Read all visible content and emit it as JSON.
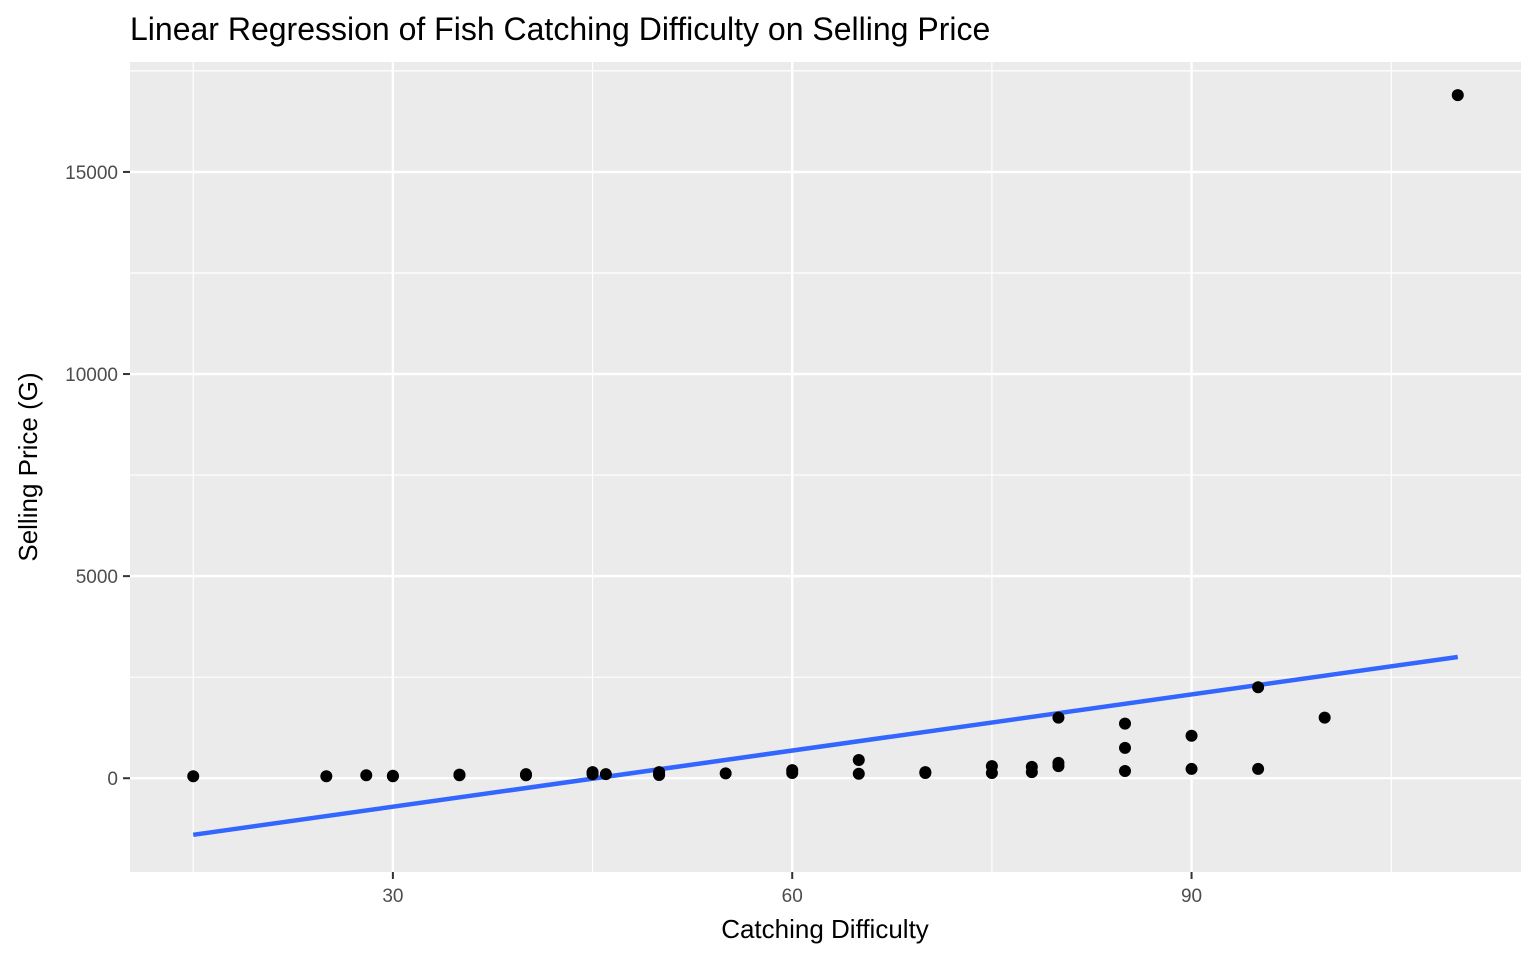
{
  "chart_data": {
    "type": "scatter",
    "title": "Linear Regression of Fish Catching Difficulty on Selling Price",
    "xlabel": "Catching Difficulty",
    "ylabel": "Selling Price (G)",
    "xlim": [
      10.25,
      114.75
    ],
    "ylim": [
      -2320,
      17720
    ],
    "x_ticks": [
      30,
      60,
      90
    ],
    "y_ticks": [
      0,
      5000,
      10000,
      15000
    ],
    "x_tick_labels": [
      "30",
      "60",
      "90"
    ],
    "y_tick_labels": [
      "0",
      "5000",
      "10000",
      "15000"
    ],
    "grid": true,
    "legend": "none",
    "colors": {
      "panel": "#ebebeb",
      "grid": "#ffffff",
      "points": "#000000",
      "fit_line": "#3366ff"
    },
    "points": {
      "x": [
        15,
        25,
        28,
        30,
        30,
        35,
        35,
        40,
        40,
        45,
        45,
        46,
        50,
        50,
        50,
        55,
        60,
        60,
        65,
        65,
        70,
        70,
        75,
        75,
        78,
        78,
        80,
        80,
        80,
        85,
        85,
        85,
        90,
        90,
        95,
        95,
        100,
        110
      ],
      "y": [
        50,
        50,
        75,
        50,
        60,
        75,
        90,
        75,
        100,
        100,
        150,
        100,
        80,
        100,
        150,
        120,
        130,
        200,
        110,
        450,
        130,
        150,
        130,
        300,
        150,
        280,
        300,
        380,
        1500,
        180,
        750,
        1350,
        230,
        1050,
        230,
        2250,
        1500,
        16900
      ]
    },
    "fit_line": {
      "x": [
        15,
        110
      ],
      "y": [
        -1400,
        3000
      ]
    }
  }
}
